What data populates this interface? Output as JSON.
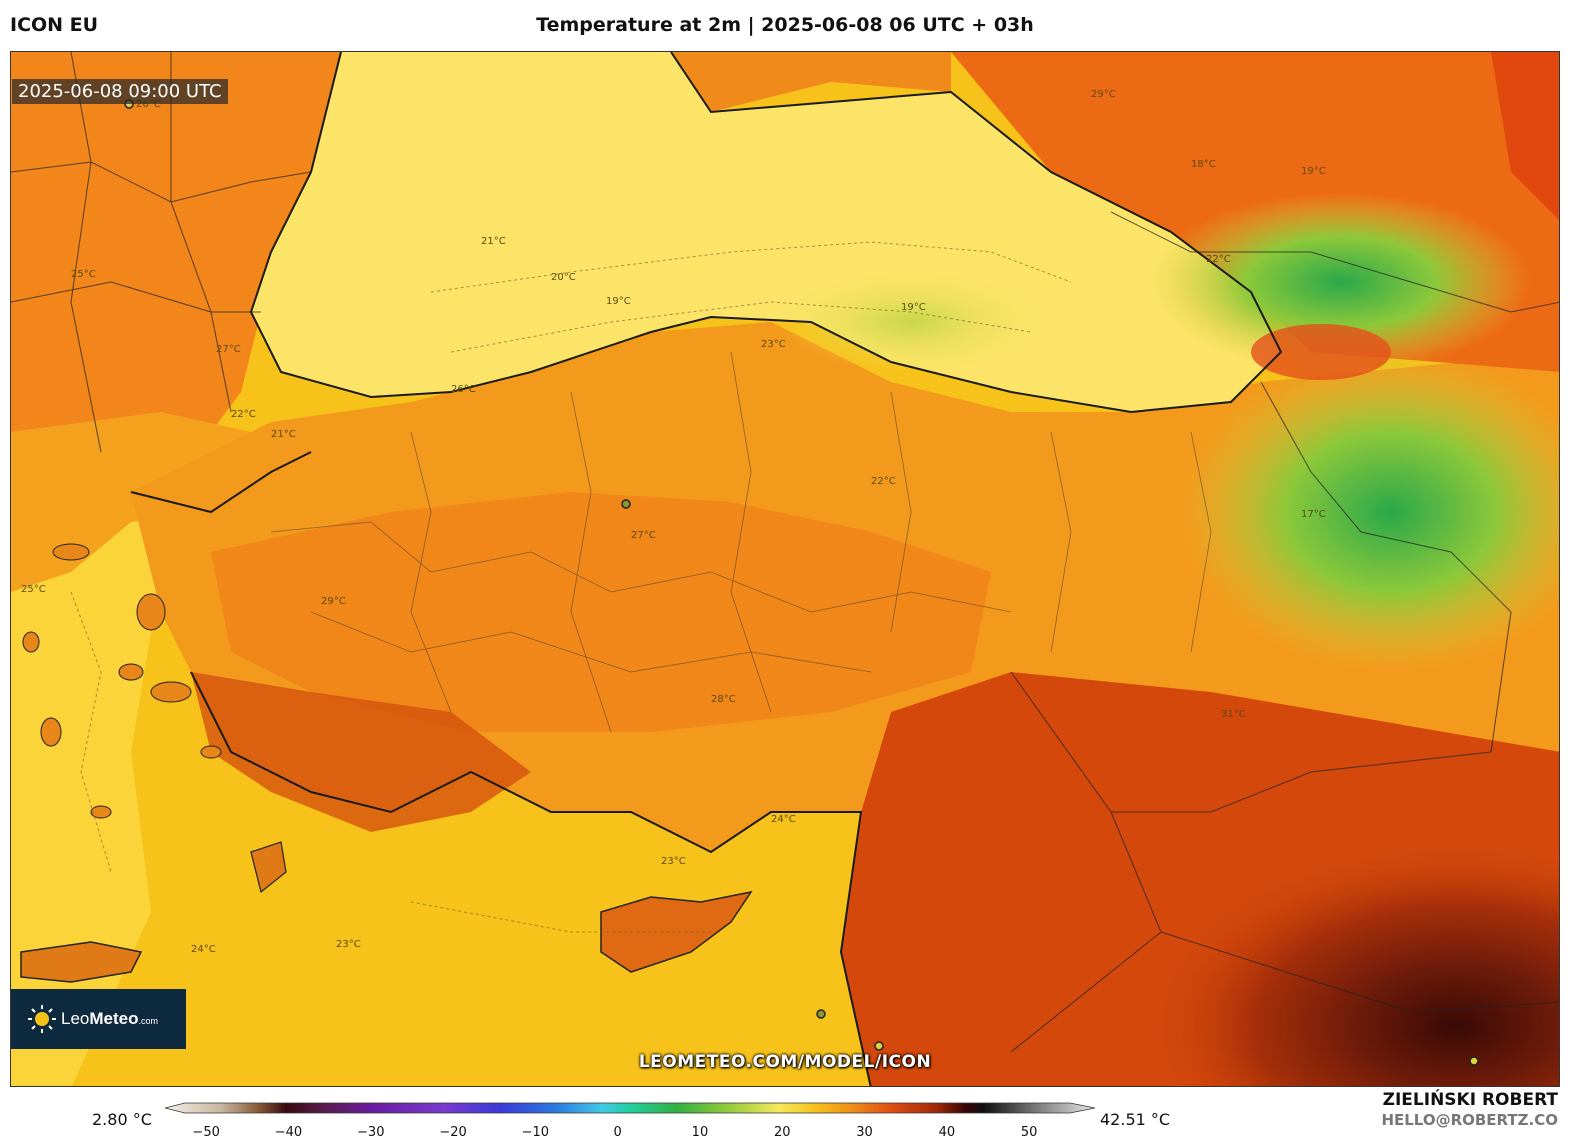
{
  "header": {
    "model": "ICON EU",
    "title": "Temperature at 2m | 2025-06-08 06 UTC + 03h"
  },
  "map": {
    "valid_time": "2025-06-08 09:00 UTC",
    "contour_labels": [
      "26°C",
      "21°C",
      "20°C",
      "19°C",
      "19°C",
      "22°C",
      "23°C",
      "25°C",
      "27°C",
      "21°C",
      "22°C",
      "29°C",
      "27°C",
      "28°C",
      "22°C",
      "24°C",
      "23°C",
      "24°C",
      "23°C",
      "31°C",
      "29°C",
      "18°C",
      "19°C",
      "17°C",
      "25°C",
      "26°C"
    ]
  },
  "branding": {
    "logo_text_main": "Leo",
    "logo_text_strong": "Meteo",
    "logo_text_suffix": ".com",
    "url": "LEOMETEO.COM/MODEL/ICON",
    "author": "ZIELIŃSKI ROBERT",
    "email": "HELLO@ROBERTZ.CO"
  },
  "colorbar": {
    "min_value": "2.80 °C",
    "max_value": "42.51 °C",
    "ticks": [
      "−50",
      "−40",
      "−30",
      "−20",
      "−10",
      "0",
      "10",
      "20",
      "30",
      "40",
      "50"
    ],
    "range": [
      -55,
      58
    ]
  }
}
